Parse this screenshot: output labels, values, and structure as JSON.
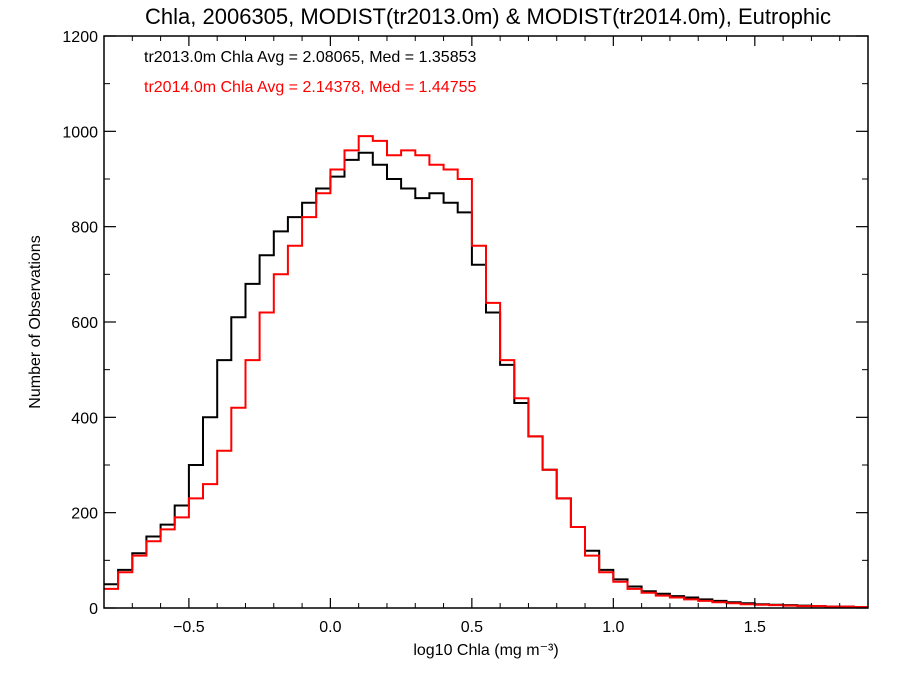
{
  "chart_data": {
    "type": "line",
    "title": "Chla, 2006305, MODIST(tr2013.0m) & MODIST(tr2014.0m), Eutrophic",
    "xlabel": "log10 Chla (mg m⁻³)",
    "ylabel": "Number of Observations",
    "xlim": [
      -0.8,
      1.9
    ],
    "ylim": [
      0,
      1200
    ],
    "xticks": [
      -0.5,
      0.0,
      0.5,
      1.0,
      1.5
    ],
    "xtick_labels": [
      "−0.5",
      "0.0",
      "0.5",
      "1.0",
      "1.5"
    ],
    "yticks": [
      0,
      200,
      400,
      600,
      800,
      1000,
      1200
    ],
    "ytick_labels": [
      "0",
      "200",
      "400",
      "600",
      "800",
      "1000",
      "1200"
    ],
    "grid": false,
    "style": "step",
    "stats": [
      {
        "text": "tr2013.0m Chla Avg = 2.08065, Med = 1.35853",
        "color": "#000000"
      },
      {
        "text": "tr2014.0m Chla Avg = 2.14378, Med = 1.44755",
        "color": "#ff0000"
      }
    ],
    "series": [
      {
        "name": "tr2013.0m",
        "color": "#000000",
        "x": [
          -0.8,
          -0.75,
          -0.7,
          -0.65,
          -0.6,
          -0.55,
          -0.5,
          -0.45,
          -0.4,
          -0.35,
          -0.3,
          -0.25,
          -0.2,
          -0.15,
          -0.1,
          -0.05,
          0.0,
          0.05,
          0.1,
          0.15,
          0.2,
          0.25,
          0.3,
          0.35,
          0.4,
          0.45,
          0.5,
          0.55,
          0.6,
          0.65,
          0.7,
          0.75,
          0.8,
          0.85,
          0.9,
          0.95,
          1.0,
          1.05,
          1.1,
          1.15,
          1.2,
          1.25,
          1.3,
          1.35,
          1.4,
          1.45,
          1.5,
          1.55,
          1.6,
          1.65,
          1.7,
          1.75,
          1.8,
          1.85,
          1.9
        ],
        "y": [
          50,
          80,
          115,
          150,
          175,
          215,
          300,
          400,
          520,
          610,
          680,
          740,
          790,
          820,
          850,
          880,
          905,
          940,
          955,
          930,
          900,
          880,
          860,
          870,
          850,
          830,
          720,
          620,
          510,
          430,
          360,
          290,
          230,
          170,
          120,
          80,
          60,
          45,
          35,
          30,
          25,
          22,
          18,
          15,
          12,
          10,
          8,
          7,
          6,
          5,
          4,
          3,
          3,
          2,
          2
        ]
      },
      {
        "name": "tr2014.0m",
        "color": "#ff0000",
        "x": [
          -0.8,
          -0.75,
          -0.7,
          -0.65,
          -0.6,
          -0.55,
          -0.5,
          -0.45,
          -0.4,
          -0.35,
          -0.3,
          -0.25,
          -0.2,
          -0.15,
          -0.1,
          -0.05,
          0.0,
          0.05,
          0.1,
          0.15,
          0.2,
          0.25,
          0.3,
          0.35,
          0.4,
          0.45,
          0.5,
          0.55,
          0.6,
          0.65,
          0.7,
          0.75,
          0.8,
          0.85,
          0.9,
          0.95,
          1.0,
          1.05,
          1.1,
          1.15,
          1.2,
          1.25,
          1.3,
          1.35,
          1.4,
          1.45,
          1.5,
          1.55,
          1.6,
          1.65,
          1.7,
          1.75,
          1.8,
          1.85,
          1.9
        ],
        "y": [
          40,
          75,
          110,
          140,
          165,
          190,
          230,
          260,
          330,
          420,
          520,
          620,
          700,
          760,
          820,
          870,
          920,
          960,
          990,
          980,
          950,
          960,
          950,
          930,
          920,
          900,
          760,
          640,
          520,
          440,
          360,
          290,
          230,
          170,
          110,
          75,
          55,
          40,
          32,
          26,
          22,
          18,
          15,
          12,
          10,
          8,
          7,
          6,
          5,
          4,
          4,
          3,
          3,
          2,
          2
        ]
      }
    ]
  }
}
